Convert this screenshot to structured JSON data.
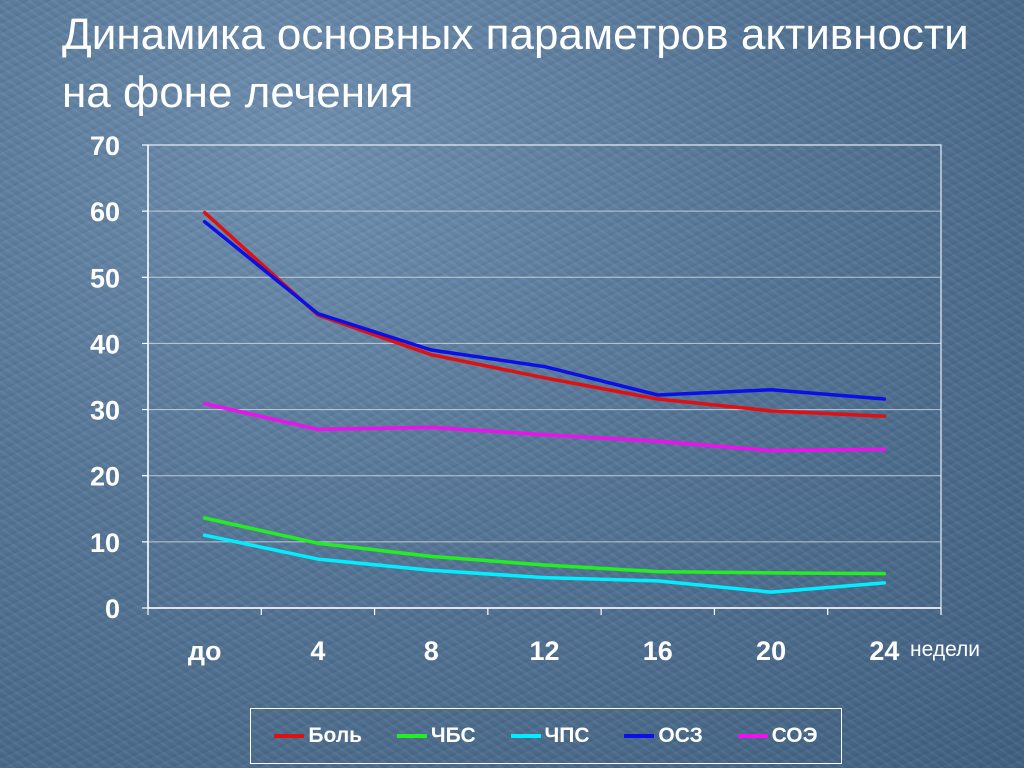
{
  "title_lines": [
    "Динамика основных параметров активности",
    "на фоне лечения"
  ],
  "chart_data": {
    "type": "line",
    "categories": [
      "до",
      "4",
      "8",
      "12",
      "16",
      "20",
      "24"
    ],
    "x_unit_label": "недели",
    "ylim": [
      0,
      70
    ],
    "yticks": [
      0,
      10,
      20,
      30,
      40,
      50,
      60,
      70
    ],
    "grid": true,
    "legend_position": "bottom",
    "series": [
      {
        "name": "Боль",
        "color": "#e01010",
        "values": [
          59.8,
          44.3,
          38.3,
          34.8,
          31.6,
          29.8,
          29.0
        ]
      },
      {
        "name": "ЧБС",
        "color": "#22ee22",
        "values": [
          13.6,
          9.8,
          7.8,
          6.5,
          5.5,
          5.3,
          5.2
        ]
      },
      {
        "name": "ЧПС",
        "color": "#00eeff",
        "values": [
          11.0,
          7.4,
          5.7,
          4.6,
          4.1,
          2.4,
          3.8
        ]
      },
      {
        "name": "ОСЗ",
        "color": "#0a10e6",
        "values": [
          58.4,
          44.5,
          39.0,
          36.5,
          32.2,
          33.0,
          31.6
        ]
      },
      {
        "name": "СОЭ",
        "color": "#ee10ee",
        "values": [
          30.9,
          27.0,
          27.3,
          26.2,
          25.2,
          23.8,
          24.0
        ]
      }
    ]
  }
}
